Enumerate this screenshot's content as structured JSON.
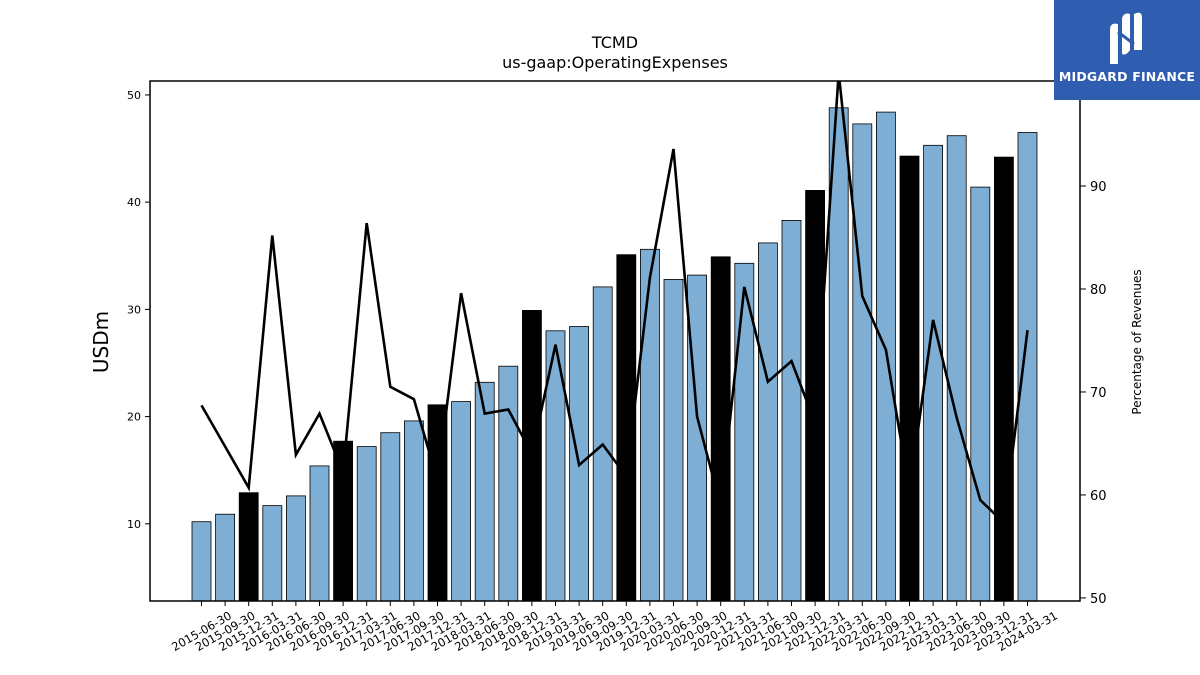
{
  "chart_data": {
    "type": "bar",
    "title": "TCMD",
    "subtitle": "us-gaap:OperatingExpenses",
    "ylabel": "USDm",
    "y2label": "Percentage of Revenues",
    "ylim": [
      2.8,
      51.3
    ],
    "y2lim": [
      49.7,
      100.2
    ],
    "yticks": [
      10,
      20,
      30,
      40,
      50
    ],
    "y2ticks": [
      50,
      60,
      70,
      80,
      90
    ],
    "categories": [
      "2015-06-30",
      "2015-09-30",
      "2015-12-31",
      "2016-03-31",
      "2016-06-30",
      "2016-09-30",
      "2016-12-31",
      "2017-03-31",
      "2017-06-30",
      "2017-09-30",
      "2017-12-31",
      "2018-03-31",
      "2018-06-30",
      "2018-09-30",
      "2018-12-31",
      "2019-03-31",
      "2019-06-30",
      "2019-09-30",
      "2019-12-31",
      "2020-03-31",
      "2020-06-30",
      "2020-09-30",
      "2020-12-31",
      "2021-03-31",
      "2021-06-30",
      "2021-09-30",
      "2021-12-31",
      "2022-03-31",
      "2022-06-30",
      "2022-09-30",
      "2022-12-31",
      "2023-03-31",
      "2023-06-30",
      "2023-09-30",
      "2023-12-31",
      "2024-03-31"
    ],
    "series": [
      {
        "kind": "bar",
        "axis": "left",
        "values": [
          10.2,
          10.9,
          12.9,
          11.7,
          12.6,
          15.4,
          17.7,
          17.2,
          18.5,
          19.6,
          21.1,
          21.4,
          23.2,
          24.7,
          29.9,
          28.0,
          28.4,
          32.1,
          35.1,
          35.6,
          32.8,
          33.2,
          34.9,
          34.3,
          36.2,
          38.3,
          41.1,
          48.8,
          47.3,
          48.4,
          44.3,
          45.3,
          46.2,
          41.4,
          44.2,
          46.5
        ],
        "highlight": [
          false,
          false,
          true,
          false,
          false,
          false,
          true,
          false,
          false,
          false,
          true,
          false,
          false,
          false,
          true,
          false,
          false,
          false,
          true,
          false,
          false,
          false,
          true,
          false,
          false,
          false,
          true,
          false,
          false,
          false,
          true,
          false,
          false,
          false,
          true,
          false
        ]
      },
      {
        "kind": "line",
        "axis": "right",
        "values": [
          68.7,
          64.7,
          60.7,
          85.2,
          63.9,
          67.9,
          62.2,
          86.4,
          70.5,
          69.3,
          61.4,
          79.6,
          67.9,
          68.3,
          64.0,
          74.6,
          62.9,
          64.9,
          61.8,
          81.1,
          93.6,
          67.6,
          58.9,
          80.2,
          71.0,
          73.0,
          67.0,
          101.0,
          79.3,
          74.1,
          60.3,
          77.0,
          67.5,
          59.5,
          57.3,
          76.0
        ]
      }
    ],
    "colors": {
      "bar": "#7eaed3",
      "highlight_bar": "#000000",
      "line": "#000000"
    },
    "grid": false,
    "legend": "none"
  },
  "logo": {
    "text": "MIDGARD FINANCE"
  }
}
